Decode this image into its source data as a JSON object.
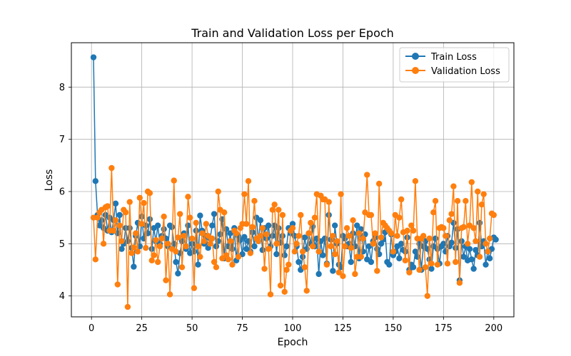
{
  "chart_data": {
    "type": "line",
    "title": "Train and Validation Loss per Epoch",
    "xlabel": "Epoch",
    "ylabel": "Loss",
    "xlim": [
      -10,
      210
    ],
    "ylim": [
      3.6,
      8.85
    ],
    "xticks": [
      0,
      25,
      50,
      75,
      100,
      125,
      150,
      175,
      200
    ],
    "yticks": [
      4,
      5,
      6,
      7,
      8
    ],
    "grid": true,
    "legend_position": "upper right",
    "x_start": 1,
    "series": [
      {
        "name": "Train Loss",
        "color": "#1f77b4",
        "values": [
          8.57,
          6.2,
          5.55,
          5.35,
          5.45,
          5.3,
          5.55,
          5.25,
          5.5,
          5.22,
          5.45,
          5.77,
          5.2,
          5.55,
          4.9,
          5.0,
          5.3,
          5.05,
          5.3,
          4.92,
          4.56,
          5.15,
          5.4,
          4.95,
          5.52,
          5.1,
          5.35,
          5.2,
          5.47,
          4.9,
          5.3,
          5.05,
          5.35,
          5.0,
          5.15,
          5.28,
          5.1,
          4.95,
          5.35,
          5.32,
          5.0,
          4.65,
          4.43,
          4.82,
          5.05,
          5.2,
          4.9,
          5.35,
          4.82,
          5.0,
          4.85,
          5.25,
          4.6,
          5.54,
          5.25,
          5.0,
          5.15,
          4.92,
          5.1,
          5.35,
          5.57,
          4.95,
          5.05,
          5.18,
          5.47,
          4.72,
          5.28,
          4.95,
          5.2,
          4.9,
          5.3,
          4.68,
          5.15,
          5.07,
          4.8,
          5.13,
          4.9,
          5.05,
          4.85,
          5.22,
          4.95,
          5.5,
          5.05,
          5.45,
          4.88,
          5.3,
          5.1,
          5.35,
          4.95,
          5.15,
          5.35,
          4.8,
          5.3,
          5.02,
          5.15,
          4.78,
          4.95,
          5.3,
          5.2,
          5.38,
          5.15,
          4.95,
          4.65,
          4.5,
          4.75,
          5.12,
          4.9,
          5.2,
          5.0,
          5.33,
          4.95,
          5.1,
          4.42,
          5.05,
          4.78,
          5.1,
          4.62,
          5.55,
          5.08,
          4.48,
          5.35,
          5.0,
          4.6,
          4.55,
          5.15,
          5.1,
          4.95,
          5.0,
          4.65,
          5.2,
          4.95,
          5.35,
          4.72,
          5.28,
          4.85,
          5.18,
          4.7,
          4.95,
          4.65,
          5.05,
          5.12,
          4.9,
          4.8,
          5.0,
          5.08,
          5.22,
          4.65,
          4.6,
          5.18,
          4.78,
          4.85,
          4.95,
          4.72,
          5.0,
          4.88,
          4.85,
          5.12,
          4.5,
          4.6,
          4.55,
          4.85,
          4.75,
          5.0,
          4.5,
          4.95,
          5.05,
          4.9,
          4.7,
          4.52,
          4.95,
          5.1,
          4.9,
          4.62,
          4.95,
          5.0,
          4.85,
          5.15,
          4.95,
          5.02,
          5.4,
          4.92,
          5.28,
          4.3,
          5.05,
          4.75,
          4.95,
          4.68,
          4.9,
          4.7,
          4.52,
          4.88,
          4.78,
          5.4,
          4.95,
          5.05,
          4.6,
          4.85,
          4.72,
          4.9,
          5.12,
          5.08
        ]
      },
      {
        "name": "Validation Loss",
        "color": "#ff7f0e",
        "values": [
          5.5,
          4.7,
          5.5,
          5.6,
          5.65,
          5.0,
          5.7,
          5.72,
          5.25,
          6.45,
          5.25,
          5.45,
          4.22,
          5.35,
          5.05,
          5.65,
          5.6,
          3.79,
          5.8,
          4.82,
          4.93,
          5.2,
          4.85,
          5.88,
          5.38,
          5.78,
          4.92,
          6.0,
          5.97,
          4.68,
          4.78,
          5.07,
          4.65,
          4.95,
          5.1,
          5.52,
          4.3,
          5.0,
          4.03,
          4.9,
          6.21,
          4.85,
          5.12,
          5.57,
          4.55,
          5.15,
          4.95,
          5.9,
          5.5,
          5.1,
          4.15,
          5.4,
          4.95,
          4.75,
          5.2,
          5.05,
          5.38,
          5.15,
          5.0,
          5.1,
          4.65,
          4.55,
          6.0,
          5.65,
          4.72,
          5.6,
          4.78,
          4.7,
          5.05,
          4.6,
          5.25,
          5.2,
          4.75,
          5.3,
          5.38,
          5.95,
          5.38,
          6.2,
          4.82,
          5.32,
          5.82,
          5.1,
          5.05,
          5.15,
          5.3,
          4.52,
          5.18,
          4.9,
          4.03,
          5.65,
          5.75,
          5.0,
          5.65,
          4.2,
          5.55,
          4.08,
          4.5,
          4.6,
          5.25,
          5.3,
          4.85,
          5.0,
          5.15,
          5.55,
          4.85,
          4.55,
          4.1,
          5.2,
          5.4,
          4.95,
          5.5,
          5.95,
          4.85,
          5.92,
          5.85,
          5.85,
          4.6,
          5.8,
          4.95,
          5.15,
          4.8,
          5.05,
          4.45,
          5.95,
          4.38,
          4.95,
          5.3,
          5.15,
          4.92,
          5.45,
          4.42,
          4.75,
          5.2,
          4.75,
          5.1,
          5.6,
          6.32,
          5.55,
          5.55,
          5.0,
          5.2,
          4.48,
          6.15,
          5.12,
          5.4,
          5.35,
          5.3,
          5.25,
          5.2,
          4.85,
          5.55,
          5.15,
          5.5,
          5.85,
          5.22,
          4.68,
          5.25,
          4.45,
          5.35,
          5.25,
          6.2,
          5.1,
          4.5,
          5.1,
          5.15,
          4.55,
          4.0,
          5.1,
          4.62,
          5.6,
          5.82,
          4.6,
          5.3,
          5.32,
          5.3,
          5.15,
          4.62,
          5.45,
          5.57,
          6.1,
          4.65,
          5.82,
          4.25,
          5.3,
          5.32,
          5.82,
          5.0,
          5.35,
          6.18,
          5.3,
          5.05,
          6.0,
          4.75,
          5.75,
          5.95,
          5.0,
          4.85,
          5.1,
          5.58,
          5.55
        ]
      }
    ]
  }
}
